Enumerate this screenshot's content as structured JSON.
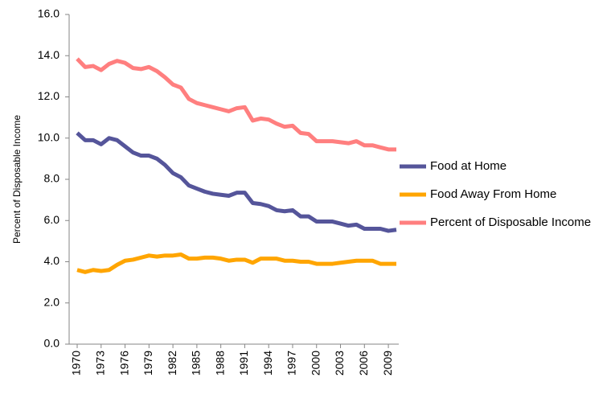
{
  "chart_data": {
    "type": "line",
    "ylabel": "Percent of Disposable Income",
    "x": [
      1970,
      1971,
      1972,
      1973,
      1974,
      1975,
      1976,
      1977,
      1978,
      1979,
      1980,
      1981,
      1982,
      1983,
      1984,
      1985,
      1986,
      1987,
      1988,
      1989,
      1990,
      1991,
      1992,
      1993,
      1994,
      1995,
      1996,
      1997,
      1998,
      1999,
      2000,
      2001,
      2002,
      2003,
      2004,
      2005,
      2006,
      2007,
      2008,
      2009,
      2010
    ],
    "series": [
      {
        "name": "Food at Home",
        "color": "#55559a",
        "values": [
          10.25,
          9.9,
          9.9,
          9.7,
          10.0,
          9.9,
          9.6,
          9.3,
          9.15,
          9.15,
          9.0,
          8.7,
          8.3,
          8.1,
          7.7,
          7.55,
          7.4,
          7.3,
          7.25,
          7.2,
          7.35,
          7.35,
          6.85,
          6.8,
          6.7,
          6.5,
          6.45,
          6.5,
          6.2,
          6.2,
          5.95,
          5.95,
          5.95,
          5.85,
          5.75,
          5.8,
          5.6,
          5.6,
          5.6,
          5.5,
          5.55
        ]
      },
      {
        "name": "Food Away From Home",
        "color": "#ffa500",
        "values": [
          3.6,
          3.5,
          3.6,
          3.55,
          3.6,
          3.85,
          4.05,
          4.1,
          4.2,
          4.3,
          4.25,
          4.3,
          4.3,
          4.35,
          4.15,
          4.15,
          4.2,
          4.2,
          4.15,
          4.05,
          4.1,
          4.1,
          3.95,
          4.15,
          4.15,
          4.15,
          4.05,
          4.05,
          4.0,
          4.0,
          3.9,
          3.9,
          3.9,
          3.95,
          4.0,
          4.05,
          4.05,
          4.05,
          3.9,
          3.9,
          3.9
        ]
      },
      {
        "name": "Percent of Disposable Income",
        "color": "#ff7f7f",
        "values": [
          13.85,
          13.45,
          13.5,
          13.3,
          13.6,
          13.75,
          13.65,
          13.4,
          13.35,
          13.45,
          13.25,
          12.95,
          12.6,
          12.45,
          11.9,
          11.7,
          11.6,
          11.5,
          11.4,
          11.3,
          11.45,
          11.5,
          10.85,
          10.95,
          10.9,
          10.7,
          10.55,
          10.6,
          10.25,
          10.2,
          9.85,
          9.85,
          9.85,
          9.8,
          9.75,
          9.85,
          9.65,
          9.65,
          9.55,
          9.45,
          9.45
        ]
      }
    ],
    "xlim": [
      1970,
      2010
    ],
    "xticks": [
      1970,
      1973,
      1976,
      1979,
      1982,
      1985,
      1988,
      1991,
      1994,
      1997,
      2000,
      2003,
      2006,
      2009
    ],
    "ylim": [
      0,
      16
    ],
    "yticks": [
      {
        "value": 0,
        "label": "0.0"
      },
      {
        "value": 2,
        "label": "2.0"
      },
      {
        "value": 4,
        "label": "4.0"
      },
      {
        "value": 6,
        "label": "6.0"
      },
      {
        "value": 8,
        "label": "8.0"
      },
      {
        "value": 10,
        "label": "10.0"
      },
      {
        "value": 12,
        "label": "12.0"
      },
      {
        "value": 14,
        "label": "14.0"
      },
      {
        "value": 16,
        "label": "16.0"
      }
    ],
    "legend": "right"
  }
}
